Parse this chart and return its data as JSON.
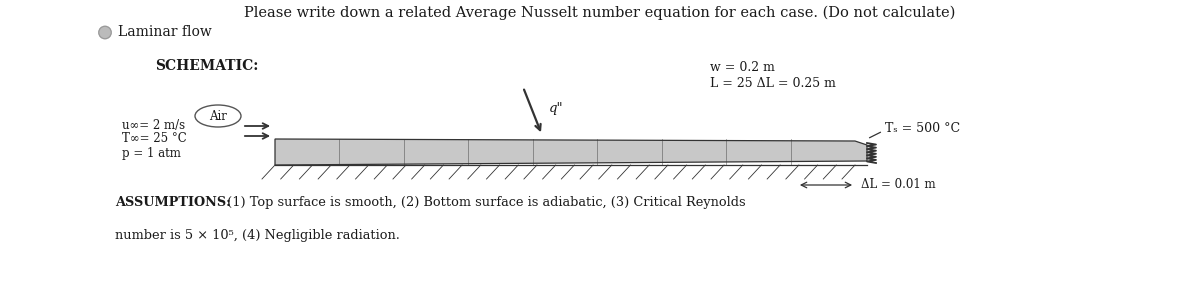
{
  "title": "Please write down a related Average Nusselt number equation for each case. (Do not calculate)",
  "subtitle": "Laminar flow",
  "schematic_label": "SCHEMATIC:",
  "air_label": "Air",
  "flow_label_0": "u∞= 2 m/s",
  "flow_label_1": "T∞= 25 °C",
  "flow_label_2": "p = 1 atm",
  "dim_label_0": "w = 0.2 m",
  "dim_label_1": "L = 25 ΔL = 0.25 m",
  "ts_label": "Tₛ = 500 °C",
  "q_label": "q\"",
  "delta_l_label": "ΔL = 0.01 m",
  "assumptions_bold": "ASSUMPTIONS:",
  "assumptions_rest": " (1) Top surface is smooth, (2) Bottom surface is adiabatic, (3) Critical Reynolds",
  "assumptions_line2": "number is 5 × 10⁵, (4) Negligible radiation.",
  "bg_color": "#ffffff",
  "text_color": "#1a1a1a",
  "plate_color": "#c8c8c8",
  "plate_edge_color": "#333333"
}
